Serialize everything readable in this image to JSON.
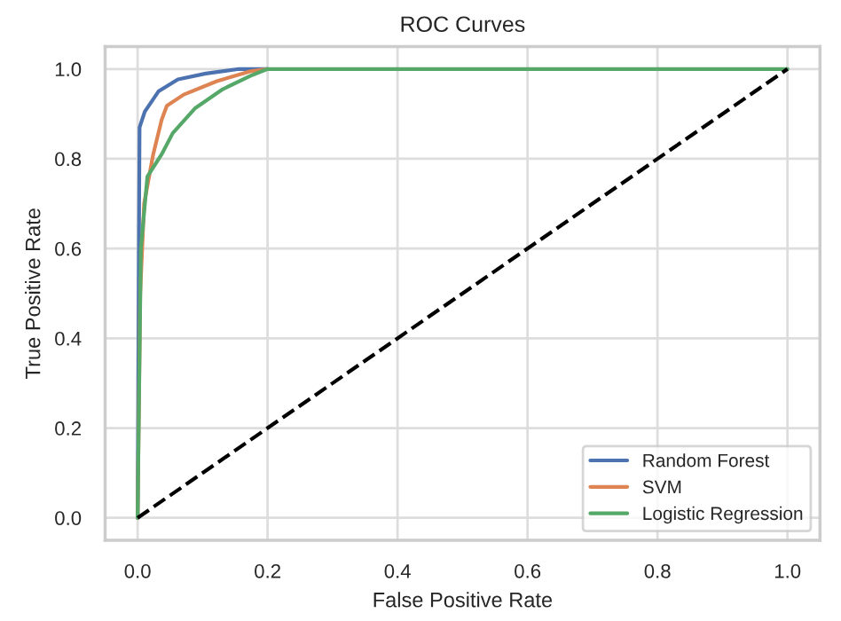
{
  "chart_data": {
    "type": "line",
    "title": "ROC Curves",
    "xlabel": "False Positive Rate",
    "ylabel": "True Positive Rate",
    "xlim": [
      -0.05,
      1.05
    ],
    "ylim": [
      -0.05,
      1.05
    ],
    "xticks": [
      {
        "value": 0,
        "label": "0.0"
      },
      0.2,
      0.4,
      0.6,
      0.8,
      {
        "value": 1,
        "label": "1.0"
      }
    ],
    "yticks": [
      {
        "value": 0,
        "label": "0.0"
      },
      0.2,
      0.4,
      0.6,
      0.8,
      {
        "value": 1,
        "label": "1.0"
      }
    ],
    "grid": true,
    "legend": "bottom right",
    "line_style": "solid",
    "series": [
      {
        "name": "Random Forest",
        "color": "#4c72b0",
        "x": [
          0,
          0.002,
          0.003,
          0.011,
          0.032,
          0.062,
          0.105,
          0.156,
          0.2
        ],
        "values": [
          0,
          0.6,
          0.87,
          0.905,
          0.95,
          0.977,
          0.99,
          1,
          1
        ]
      },
      {
        "name": "SVM",
        "color": "#dd8452",
        "x": [
          0,
          0.004,
          0.01,
          0.024,
          0.037,
          0.045,
          0.071,
          0.122,
          0.174,
          0.2
        ],
        "values": [
          0,
          0.5,
          0.7,
          0.81,
          0.887,
          0.918,
          0.943,
          0.973,
          0.995,
          1
        ]
      },
      {
        "name": "Logistic Regression",
        "color": "#55a868",
        "x": [
          0,
          0.005,
          0.015,
          0.037,
          0.054,
          0.088,
          0.131,
          0.174,
          0.2,
          1
        ],
        "values": [
          0,
          0.6,
          0.76,
          0.81,
          0.857,
          0.912,
          0.955,
          0.985,
          1,
          1
        ]
      },
      {
        "color": "#000000",
        "line_style": "dashed",
        "x": [
          0,
          1
        ],
        "values": [
          0,
          1
        ]
      }
    ]
  }
}
